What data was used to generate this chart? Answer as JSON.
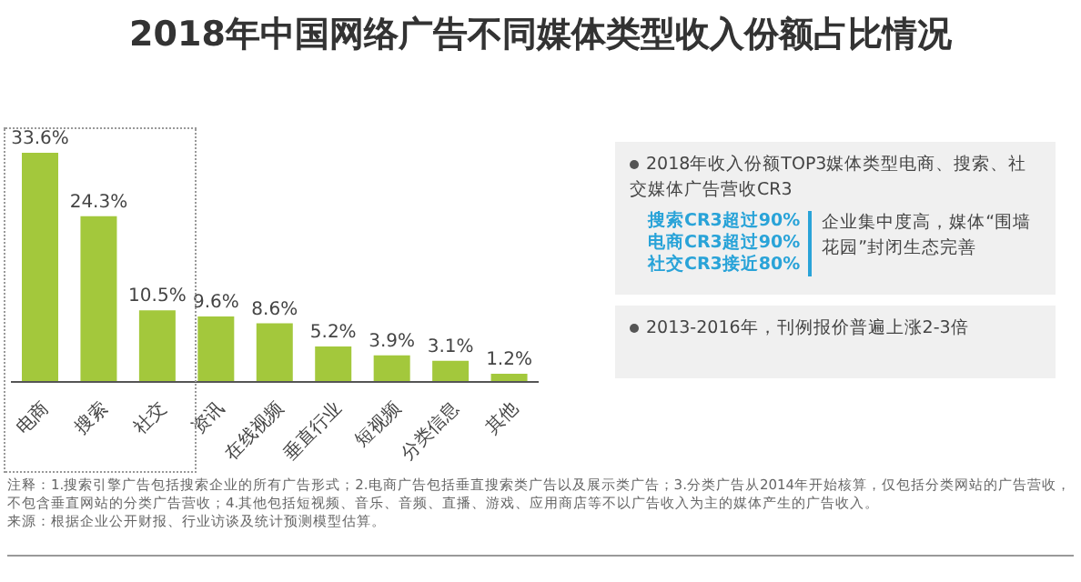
{
  "chart_data": {
    "type": "bar",
    "title": "2018年中国网络广告不同媒体类型收入份额占比情况",
    "categories": [
      "电商",
      "搜索",
      "社交",
      "资讯",
      "在线视频",
      "垂直行业",
      "短视频",
      "分类信息",
      "其他"
    ],
    "values": [
      33.6,
      24.3,
      10.5,
      9.6,
      8.6,
      5.2,
      3.9,
      3.1,
      1.2
    ],
    "value_labels": [
      "33.6%",
      "24.3%",
      "10.5%",
      "9.6%",
      "8.6%",
      "5.2%",
      "3.9%",
      "3.1%",
      "1.2%"
    ],
    "color": "#a3c83c",
    "grid": false,
    "legend": false,
    "tick_labels": "x",
    "annotations": [
      "2018年收入份额TOP3媒体类型电商、搜索、社交媒体广告营收CR3",
      "搜索CR3超过90%",
      "电商CR3超过90%",
      "社交CR3接近80%",
      "企业集中度高，媒体“围墙花园”封闭生态完善",
      "2013-2016年，刊例报价普遍上涨2-3倍",
      "注释：1.搜索引擎广告包括搜索企业的所有广告形式；2.电商广告包括垂直搜索类广告以及展示类广告；3.分类广告从2014年开始核算，仅包括分类网站的广告营收，不包含垂直网站的分类广告营收；4.其他包括短视频、音乐、音频、直播、游戏、应用商店等不以广告收入为主的媒体产生的广告收入。",
      "来源：根据企业公开财报、行业访谈及统计预测模型估算。"
    ]
  }
}
